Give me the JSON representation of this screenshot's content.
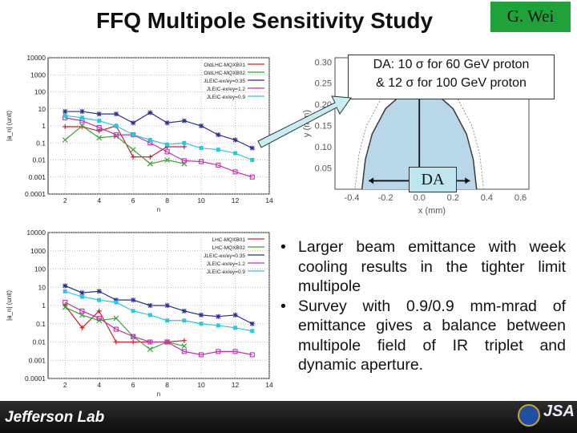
{
  "slide": {
    "title": "FFQ Multipole Sensitivity Study",
    "author": "G. Wei",
    "callout": {
      "line1": "DA: 10 σ for 60 GeV proton",
      "line2": "& 12 σ for 100 GeV proton"
    },
    "da_label": "DA",
    "bullets": [
      "Larger beam emittance with week cooling results in the tighter limit multipole",
      "Survey with 0.9/0.9 mm-mrad of emittance gives a balance between multipole field of IR triplet and dynamic aperture."
    ],
    "bullet_glyph": "•",
    "footer": {
      "logo_text": "Jefferson Lab",
      "partner_text": "JSA"
    }
  },
  "chart_data": [
    {
      "type": "line",
      "scale": "log",
      "ylabel": "|a_n| (unit)",
      "xlabel": "n",
      "ylim": [
        0.0001,
        10000
      ],
      "xlim": [
        1,
        14
      ],
      "x_ticks": [
        "2",
        "4",
        "6",
        "8",
        "10",
        "12",
        "14"
      ],
      "y_ticks": [
        "10000",
        "1000",
        "100",
        "10",
        "1",
        "0.1",
        "0.01",
        "0.001",
        "0.0001"
      ],
      "legend_position": "top-right",
      "series": [
        {
          "name": "OldLHC-MQXB01",
          "color": "#d0202c",
          "marker": "+",
          "x": [
            2,
            3,
            4,
            5,
            6,
            7,
            8,
            9
          ],
          "values": [
            0.9,
            0.9,
            0.5,
            1.0,
            0.015,
            0.015,
            0.06,
            0.06
          ]
        },
        {
          "name": "OldLHC-MQXB02",
          "color": "#3aa535",
          "marker": "x",
          "x": [
            2,
            3,
            4,
            5,
            6,
            7,
            8,
            9
          ],
          "values": [
            0.15,
            1.0,
            0.2,
            0.25,
            0.04,
            0.006,
            0.01,
            0.006
          ]
        },
        {
          "name": "JLEIC-ex/ey=0.35",
          "color": "#2c2c9c",
          "marker": "*",
          "x": [
            2,
            3,
            4,
            5,
            6,
            7,
            8,
            9,
            10,
            11,
            12,
            13
          ],
          "values": [
            7,
            7,
            5,
            5,
            1.5,
            6,
            1.5,
            2,
            1.0,
            0.3,
            0.15,
            0.05
          ]
        },
        {
          "name": "JLEIC-ex/ey=1.2",
          "color": "#c030b0",
          "marker": "box",
          "x": [
            2,
            3,
            4,
            5,
            6,
            7,
            8,
            9,
            10,
            11,
            12,
            13
          ],
          "values": [
            3,
            2,
            0.8,
            0.3,
            0.3,
            0.1,
            0.03,
            0.009,
            0.008,
            0.005,
            0.002,
            0.001
          ]
        },
        {
          "name": "JLEIC-ex/ey=0.9",
          "color": "#28c8e0",
          "marker": "fbox",
          "x": [
            2,
            3,
            4,
            5,
            6,
            7,
            8,
            9,
            10,
            11,
            12,
            13
          ],
          "values": [
            4,
            3,
            2,
            1,
            0.3,
            0.15,
            0.08,
            0.1,
            0.05,
            0.04,
            0.025,
            0.01
          ]
        }
      ]
    },
    {
      "type": "line",
      "scale": "log",
      "ylabel": "|a_n| (unit)",
      "xlabel": "n",
      "ylim": [
        0.0001,
        10000
      ],
      "xlim": [
        1,
        14
      ],
      "x_ticks": [
        "2",
        "4",
        "6",
        "8",
        "10",
        "12",
        "14"
      ],
      "y_ticks": [
        "10000",
        "1000",
        "100",
        "10",
        "1",
        "0.1",
        "0.01",
        "0.001",
        "0.0001"
      ],
      "legend_position": "top-right",
      "series": [
        {
          "name": "LHC-MQXB01",
          "color": "#d0202c",
          "marker": "+",
          "x": [
            2,
            3,
            4,
            5,
            6,
            7,
            8,
            9
          ],
          "values": [
            1.0,
            0.06,
            0.5,
            0.01,
            0.01,
            0.01,
            0.01,
            0.012
          ]
        },
        {
          "name": "LHC-MQXB02",
          "color": "#3aa535",
          "marker": "x",
          "x": [
            2,
            3,
            4,
            5,
            6,
            7,
            8,
            9
          ],
          "values": [
            0.8,
            0.3,
            0.15,
            0.2,
            0.02,
            0.004,
            0.01,
            0.006
          ]
        },
        {
          "name": "JLEIC-ex/ey=0.35",
          "color": "#2c2c9c",
          "marker": "*",
          "x": [
            2,
            3,
            4,
            5,
            6,
            7,
            8,
            9,
            10,
            11,
            12,
            13
          ],
          "values": [
            12,
            5,
            6,
            2,
            2,
            1.0,
            1.0,
            0.5,
            0.3,
            0.25,
            0.3,
            0.1
          ]
        },
        {
          "name": "JLEIC-ex/ey=1.2",
          "color": "#c030b0",
          "marker": "box",
          "x": [
            2,
            3,
            4,
            5,
            6,
            7,
            8,
            9,
            10,
            11,
            12,
            13
          ],
          "values": [
            1.5,
            0.5,
            0.2,
            0.05,
            0.02,
            0.01,
            0.01,
            0.003,
            0.002,
            0.003,
            0.003,
            0.002
          ]
        },
        {
          "name": "JLEIC-ex/ey=0.9",
          "color": "#28c8e0",
          "marker": "fbox",
          "x": [
            2,
            3,
            4,
            5,
            6,
            7,
            8,
            9,
            10,
            11,
            12,
            13
          ],
          "values": [
            6,
            3,
            2,
            1.5,
            0.5,
            0.3,
            0.15,
            0.15,
            0.1,
            0.08,
            0.06,
            0.04
          ]
        }
      ]
    },
    {
      "type": "line",
      "xlabel": "x (mm)",
      "ylabel": "y (mm)",
      "x_ticks": [
        "-0.4",
        "-0.2",
        "0.0",
        "0.2",
        "0.4",
        "0.6"
      ],
      "y_ticks": [
        "0.30",
        "0.25",
        "0.20",
        "0.15",
        "0.10",
        "0.05"
      ],
      "xlim": [
        -0.5,
        0.65
      ],
      "ylim": [
        0.0,
        0.31
      ],
      "series": [
        {
          "x": [
            -0.34,
            -0.32,
            -0.28,
            -0.2,
            -0.1,
            0.0,
            0.1,
            0.2,
            0.28,
            0.32,
            0.34
          ],
          "values": [
            0.0,
            0.07,
            0.13,
            0.19,
            0.225,
            0.235,
            0.225,
            0.19,
            0.13,
            0.07,
            0.0
          ]
        }
      ]
    }
  ],
  "colors": {
    "author_badge": "#1fa23a",
    "da_fill": "#bfe6ee",
    "footer": "#141414"
  }
}
